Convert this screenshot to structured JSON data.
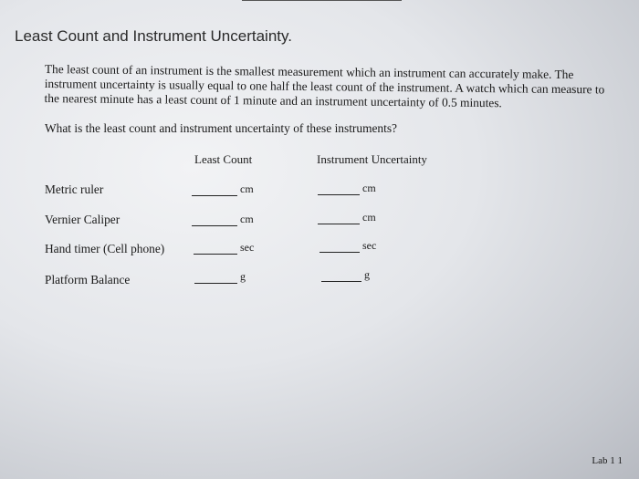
{
  "title": "Least Count and Instrument Uncertainty.",
  "paragraph": "The least count of an instrument is the smallest measurement which an instrument can accurately make. The instrument uncertainty is usually equal to one half the least count of the instrument. A watch which can measure to the nearest minute has a least count of 1 minute and an instrument uncertainty of 0.5 minutes.",
  "question": "What is the least count and instrument uncertainty of these instruments?",
  "columns": {
    "least_count": "Least Count",
    "uncertainty": "Instrument Uncertainty"
  },
  "rows": [
    {
      "label": "Metric ruler",
      "unit_lc": "cm",
      "unit_iu": "cm"
    },
    {
      "label": "Vernier Caliper",
      "unit_lc": "cm",
      "unit_iu": "cm"
    },
    {
      "label": "Hand timer (Cell phone)",
      "unit_lc": "sec",
      "unit_iu": "sec"
    },
    {
      "label": "Platform Balance",
      "unit_lc": "g",
      "unit_iu": "g"
    }
  ],
  "footer": "Lab 1 1"
}
